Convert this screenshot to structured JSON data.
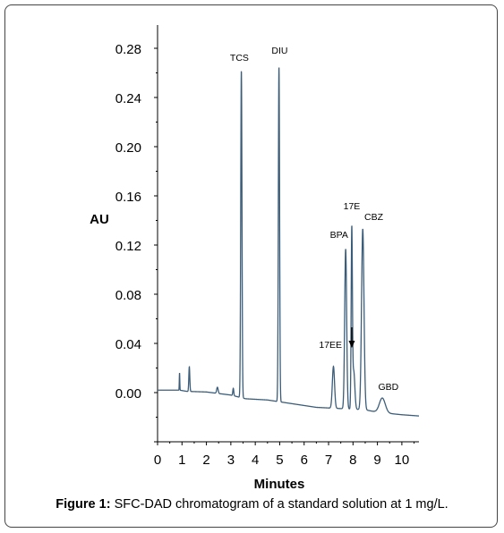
{
  "caption": {
    "label": "Figure 1:",
    "text": "SFC-DAD chromatogram of a standard solution at 1 mg/L."
  },
  "chart_data": {
    "type": "line",
    "title": "",
    "xlabel": "Minutes",
    "ylabel": "AU",
    "xlim": [
      0,
      10.7
    ],
    "ylim": [
      -0.04,
      0.3
    ],
    "x_ticks": [
      "0",
      "1",
      "2",
      "3",
      "4",
      "5",
      "6",
      "7",
      "8",
      "9",
      "10"
    ],
    "y_ticks": [
      "0.28",
      "0.24",
      "0.20",
      "0.16",
      "0.12",
      "0.08",
      "0.04",
      "0.00"
    ],
    "line_color": "#3c5d7a",
    "baseline": [
      [
        0.0,
        0.002
      ],
      [
        0.9,
        0.002
      ],
      [
        1.2,
        0.001
      ],
      [
        2.0,
        0.0005
      ],
      [
        3.0,
        -0.002
      ],
      [
        3.6,
        -0.005
      ],
      [
        4.5,
        -0.006
      ],
      [
        5.5,
        -0.009
      ],
      [
        6.5,
        -0.012
      ],
      [
        7.5,
        -0.013
      ],
      [
        8.5,
        -0.014
      ],
      [
        9.0,
        -0.016
      ],
      [
        9.5,
        -0.017
      ],
      [
        10.0,
        -0.018
      ],
      [
        10.7,
        -0.019
      ]
    ],
    "peaks": [
      {
        "label": "",
        "rt": 0.9,
        "height": 0.014,
        "width": 0.01
      },
      {
        "label": "",
        "rt": 1.3,
        "height": 0.02,
        "width": 0.02
      },
      {
        "label": "",
        "rt": 2.45,
        "height": 0.005,
        "width": 0.03
      },
      {
        "label": "",
        "rt": 3.1,
        "height": 0.006,
        "width": 0.02
      },
      {
        "label": "TCS",
        "rt": 3.43,
        "height": 0.266,
        "width": 0.025
      },
      {
        "label": "DIU",
        "rt": 4.97,
        "height": 0.272,
        "width": 0.025
      },
      {
        "label": "17EE",
        "rt": 7.2,
        "height": 0.034,
        "width": 0.045
      },
      {
        "label": "BPA",
        "rt": 7.7,
        "height": 0.13,
        "width": 0.04
      },
      {
        "label": "",
        "rt": 8.03,
        "height": 0.031,
        "width": 0.045
      },
      {
        "label": "17E",
        "rt": 7.95,
        "height": 0.143,
        "width": 0.025
      },
      {
        "label": "CBZ",
        "rt": 8.4,
        "height": 0.147,
        "width": 0.05
      },
      {
        "label": "GBD",
        "rt": 9.2,
        "height": 0.012,
        "width": 0.12
      }
    ],
    "annotations": [
      {
        "text": "TCS"
      },
      {
        "text": "DIU"
      },
      {
        "text": "17EE"
      },
      {
        "text": "BPA"
      },
      {
        "text": "17E"
      },
      {
        "text": "CBZ"
      },
      {
        "text": "GBD"
      }
    ]
  }
}
